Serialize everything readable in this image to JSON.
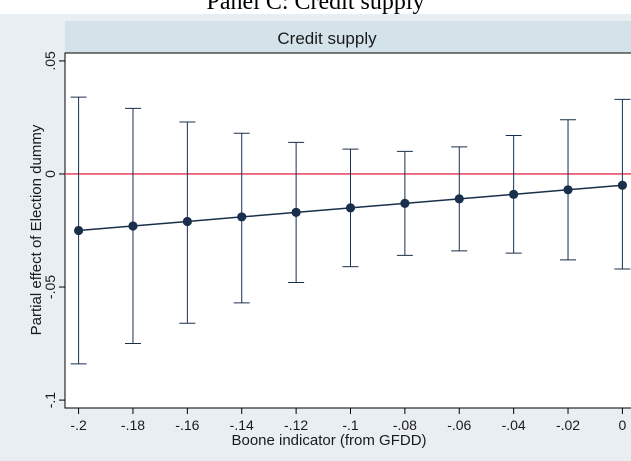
{
  "header": {
    "cut_title": "Panel C: Credit supply"
  },
  "chart_data": {
    "type": "scatter",
    "title": "Credit supply",
    "xlabel": "Boone indicator (from GFDD)",
    "ylabel": "Partial effect of Election dummy",
    "x": [
      -0.2,
      -0.18,
      -0.16,
      -0.14,
      -0.12,
      -0.1,
      -0.08,
      -0.06,
      -0.04,
      -0.02,
      0
    ],
    "xtick_values": [
      -0.2,
      -0.18,
      -0.16,
      -0.14,
      -0.12,
      -0.1,
      -0.08,
      -0.06,
      -0.04,
      -0.02,
      0
    ],
    "xtick_labels": [
      "-.2",
      "-.18",
      "-.16",
      "-.14",
      "-.12",
      "-.1",
      "-.08",
      "-.06",
      "-.04",
      "-.02",
      "0"
    ],
    "ytick_values": [
      0.05,
      0,
      -0.05,
      -0.1
    ],
    "ytick_labels": [
      ".05",
      "0",
      "-.05",
      "-.1"
    ],
    "xlim": [
      -0.205,
      0.005
    ],
    "ylim": [
      -0.1035,
      0.0535
    ],
    "series": [
      {
        "estimate": [
          -0.025,
          -0.023,
          -0.021,
          -0.019,
          -0.017,
          -0.015,
          -0.013,
          -0.011,
          -0.009,
          -0.007,
          -0.005
        ],
        "ci_upper": [
          0.034,
          0.029,
          0.023,
          0.018,
          0.014,
          0.011,
          0.01,
          0.012,
          0.017,
          0.024,
          0.033
        ],
        "ci_lower": [
          -0.084,
          -0.075,
          -0.066,
          -0.057,
          -0.048,
          -0.041,
          -0.036,
          -0.034,
          -0.035,
          -0.038,
          -0.042
        ]
      }
    ],
    "reference_line_y": 0,
    "colors": {
      "series": "#1a2f4b",
      "reference": "#e8506a",
      "plot_bg": "#ffffff",
      "outer_bg": "#e8eef2",
      "title_bg": "#d4e2ea"
    },
    "grid": false,
    "legend": "none"
  }
}
